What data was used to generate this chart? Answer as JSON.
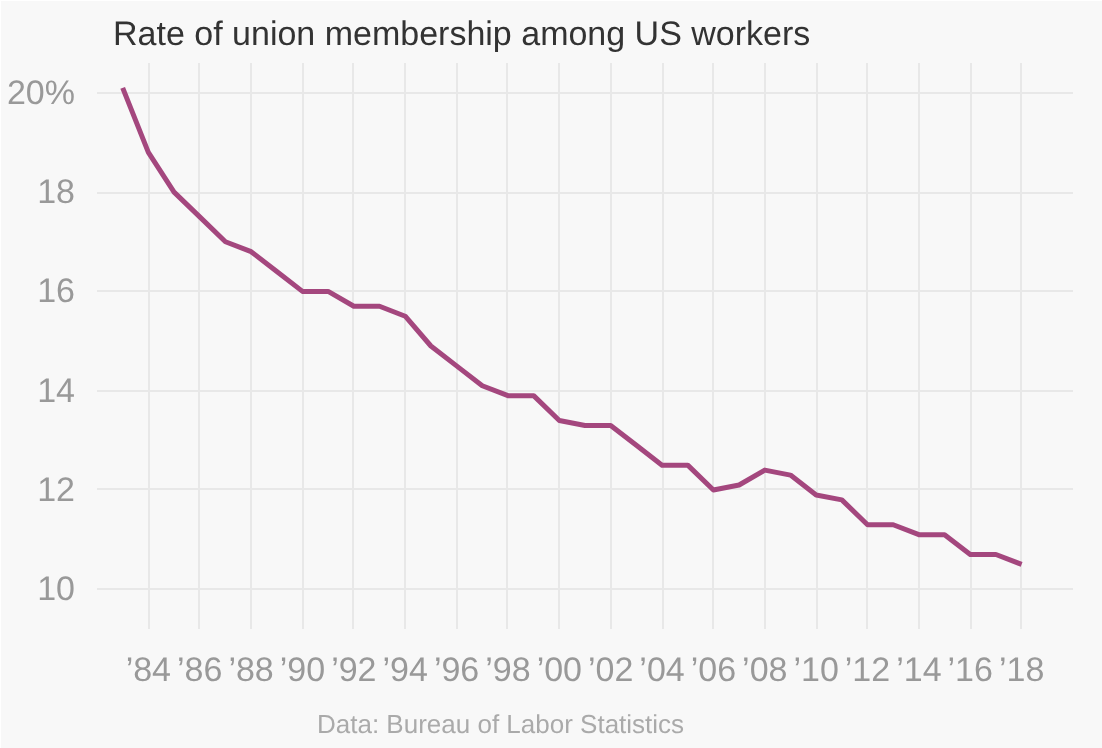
{
  "chart_data": {
    "type": "line",
    "title": "Rate of union membership among US workers",
    "x": [
      1983,
      1984,
      1985,
      1986,
      1987,
      1988,
      1989,
      1990,
      1991,
      1992,
      1993,
      1994,
      1995,
      1996,
      1997,
      1998,
      1999,
      2000,
      2001,
      2002,
      2003,
      2004,
      2005,
      2006,
      2007,
      2008,
      2009,
      2010,
      2011,
      2012,
      2013,
      2014,
      2015,
      2016,
      2017,
      2018
    ],
    "series": [
      {
        "color": "#a4477e",
        "values": [
          20.1,
          18.8,
          18.0,
          17.5,
          17.0,
          16.8,
          16.4,
          16.0,
          16.0,
          15.7,
          15.7,
          15.5,
          14.9,
          14.5,
          14.1,
          13.9,
          13.9,
          13.4,
          13.3,
          13.3,
          12.9,
          12.5,
          12.5,
          12.0,
          12.1,
          12.4,
          12.3,
          11.9,
          11.8,
          11.3,
          11.3,
          11.1,
          11.1,
          10.7,
          10.7,
          10.5
        ]
      }
    ],
    "xlim": [
      1982,
      2020
    ],
    "ylim": [
      9.2,
      20.6
    ],
    "xticks": [
      {
        "value": 1984,
        "label": "’84"
      },
      {
        "value": 1986,
        "label": "’86"
      },
      {
        "value": 1988,
        "label": "’88"
      },
      {
        "value": 1990,
        "label": "’90"
      },
      {
        "value": 1992,
        "label": "’92"
      },
      {
        "value": 1994,
        "label": "’94"
      },
      {
        "value": 1996,
        "label": "’96"
      },
      {
        "value": 1998,
        "label": "’98"
      },
      {
        "value": 2000,
        "label": "’00"
      },
      {
        "value": 2002,
        "label": "’02"
      },
      {
        "value": 2004,
        "label": "’04"
      },
      {
        "value": 2006,
        "label": "’06"
      },
      {
        "value": 2008,
        "label": "’08"
      },
      {
        "value": 2010,
        "label": "’10"
      },
      {
        "value": 2012,
        "label": "’12"
      },
      {
        "value": 2014,
        "label": "’14"
      },
      {
        "value": 2016,
        "label": "’16"
      },
      {
        "value": 2018,
        "label": "’18"
      }
    ],
    "yticks": [
      10,
      12,
      14,
      16,
      18,
      {
        "value": 20,
        "label": "20%"
      }
    ],
    "grid": true,
    "line_style": "solid",
    "marker": "none",
    "annotations": [
      "Data: Bureau of Labor Statistics"
    ]
  }
}
